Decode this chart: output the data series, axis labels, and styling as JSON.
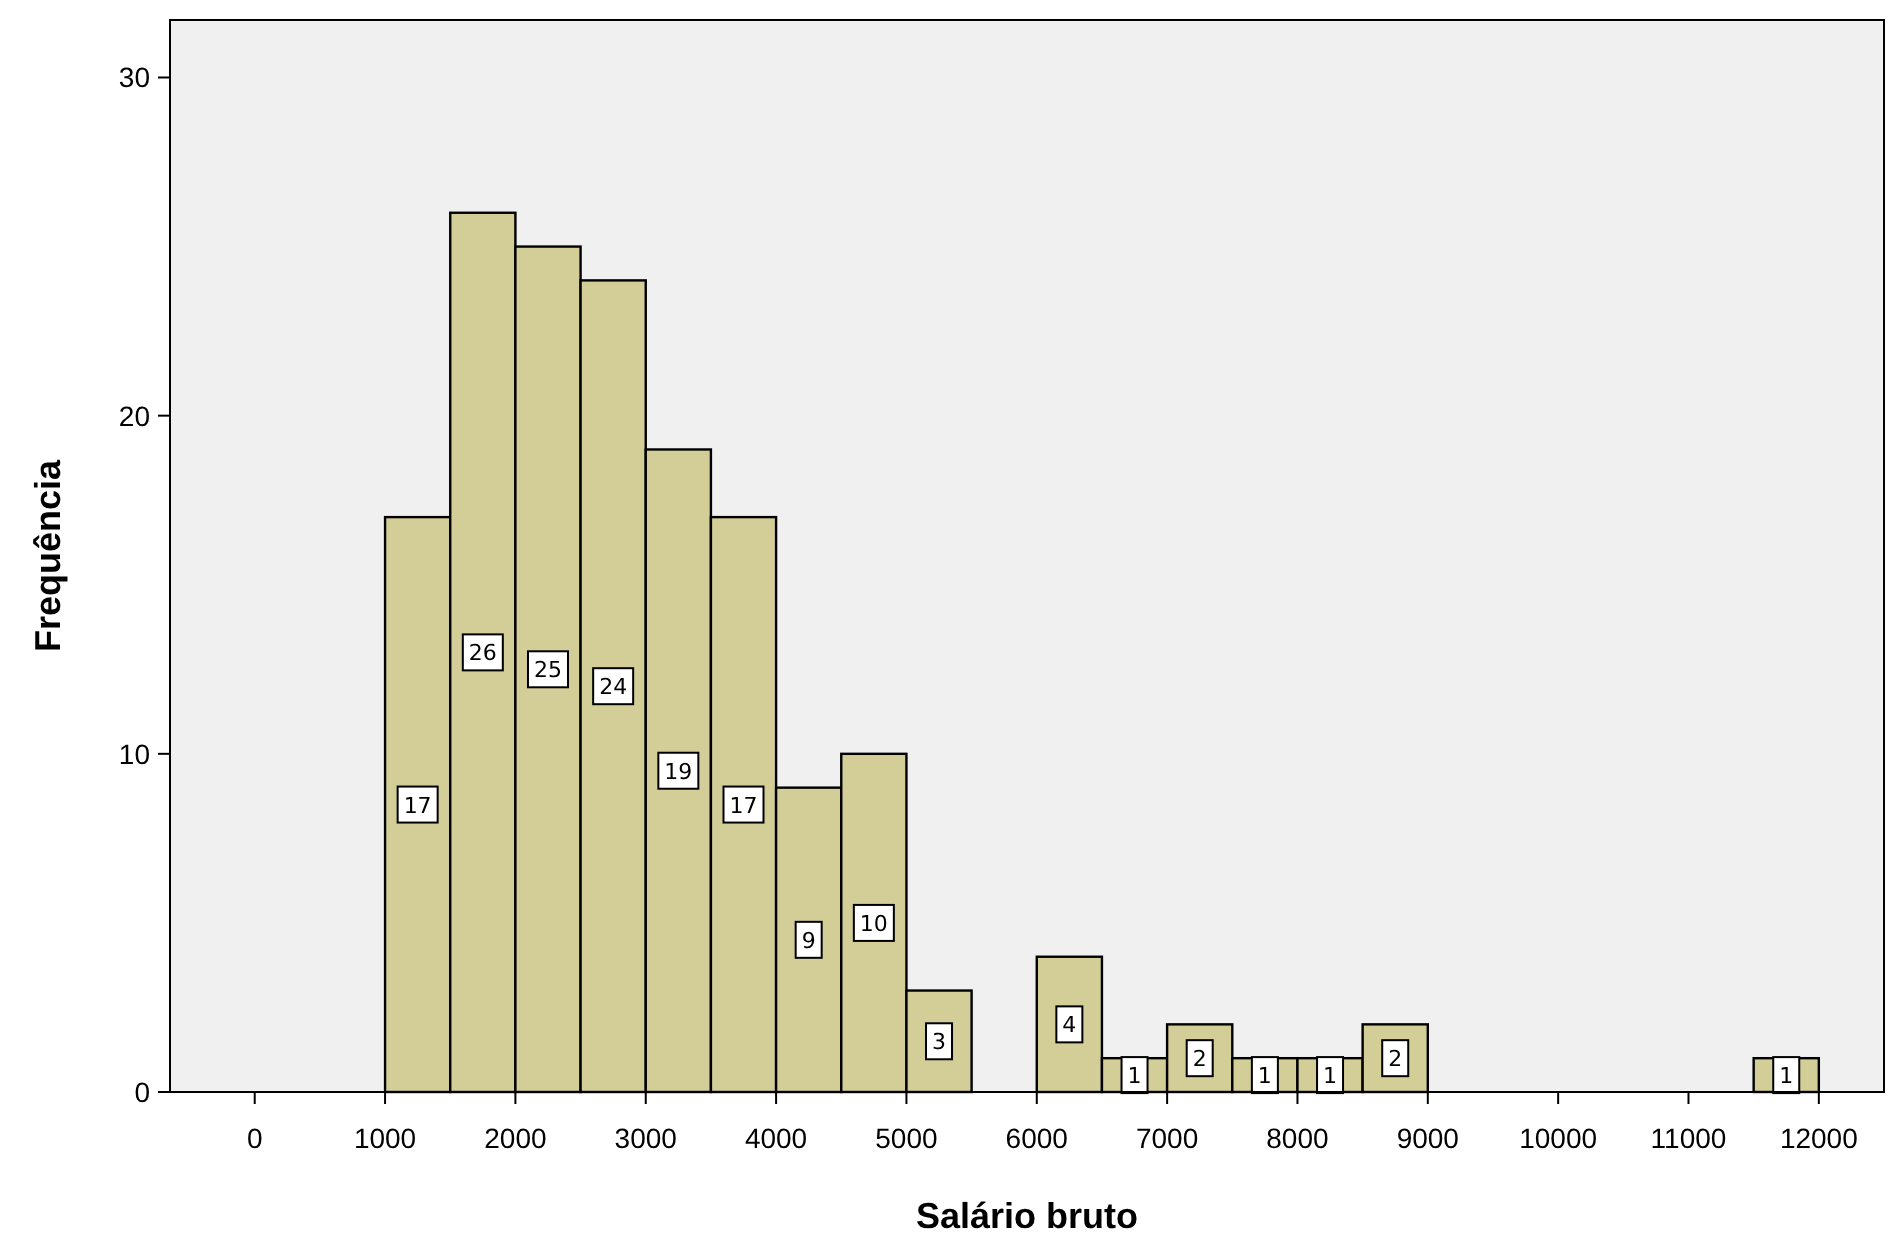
{
  "chart_data": {
    "type": "histogram",
    "xlabel": "Salário bruto",
    "ylabel": "Frequência",
    "bins": [
      1000,
      1500,
      2000,
      2500,
      3000,
      3500,
      4000,
      4500,
      5000,
      5500,
      6000,
      6500,
      7000,
      7500,
      8000,
      8500,
      9000,
      9500,
      10000,
      10500,
      11000,
      11500,
      12000
    ],
    "values": [
      17,
      26,
      25,
      24,
      19,
      17,
      9,
      10,
      3,
      0,
      4,
      1,
      2,
      1,
      1,
      2,
      0,
      0,
      0,
      0,
      0,
      1
    ],
    "color": "#d3ce97",
    "xlim": [
      -650,
      12500
    ],
    "xticks": [
      0,
      1000,
      2000,
      3000,
      4000,
      5000,
      6000,
      7000,
      8000,
      9000,
      10000,
      11000,
      12000
    ],
    "ylim": [
      0,
      31.7
    ],
    "yticks": [
      0,
      10,
      20,
      30
    ],
    "value_labels": [
      "17",
      "26",
      "25",
      "24",
      "19",
      "17",
      "9",
      "10",
      "3",
      null,
      "4",
      "1",
      "2",
      "1",
      "1",
      "2",
      null,
      null,
      null,
      null,
      null,
      "1"
    ],
    "grid": false
  }
}
